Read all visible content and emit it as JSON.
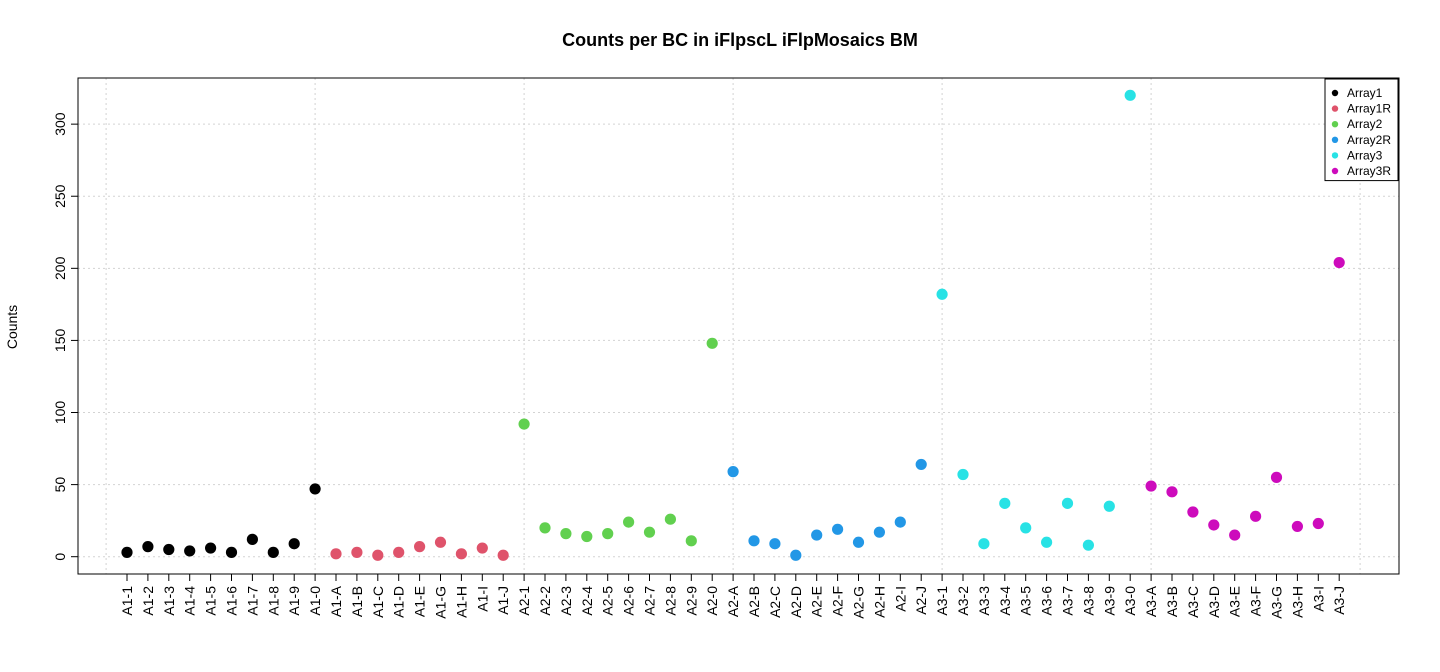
{
  "chart_data": {
    "type": "scatter",
    "title": "Counts per BC in iFlpscL iFlpMosaics BM",
    "xlabel": "",
    "ylabel": "Counts",
    "ylim": [
      -12,
      332
    ],
    "y_ticks": [
      0,
      50,
      100,
      150,
      200,
      250,
      300
    ],
    "grid": true,
    "legend_position": "top-right",
    "categories": [
      "A1-1",
      "A1-2",
      "A1-3",
      "A1-4",
      "A1-5",
      "A1-6",
      "A1-7",
      "A1-8",
      "A1-9",
      "A1-0",
      "A1-A",
      "A1-B",
      "A1-C",
      "A1-D",
      "A1-E",
      "A1-G",
      "A1-H",
      "A1-I",
      "A1-J",
      "A2-1",
      "A2-2",
      "A2-3",
      "A2-4",
      "A2-5",
      "A2-6",
      "A2-7",
      "A2-8",
      "A2-9",
      "A2-0",
      "A2-A",
      "A2-B",
      "A2-C",
      "A2-D",
      "A2-E",
      "A2-F",
      "A2-G",
      "A2-H",
      "A2-I",
      "A2-J",
      "A3-1",
      "A3-2",
      "A3-3",
      "A3-4",
      "A3-5",
      "A3-6",
      "A3-7",
      "A3-8",
      "A3-9",
      "A3-0",
      "A3-A",
      "A3-B",
      "A3-C",
      "A3-D",
      "A3-E",
      "A3-F",
      "A3-G",
      "A3-H",
      "A3-I",
      "A3-J"
    ],
    "series": [
      {
        "name": "Array1",
        "color": "#000000",
        "start": 0,
        "values": [
          3,
          7,
          5,
          4,
          6,
          3,
          12,
          3,
          9,
          47
        ]
      },
      {
        "name": "Array1R",
        "color": "#DF536B",
        "start": 10,
        "values": [
          2,
          3,
          1,
          3,
          7,
          10,
          2,
          6,
          1
        ]
      },
      {
        "name": "Array2",
        "color": "#61D04F",
        "start": 19,
        "values": [
          92,
          20,
          16,
          14,
          16,
          24,
          17,
          26,
          11,
          148
        ]
      },
      {
        "name": "Array2R",
        "color": "#2297E6",
        "start": 29,
        "values": [
          59,
          11,
          9,
          1,
          15,
          19,
          10,
          17,
          24,
          64
        ]
      },
      {
        "name": "Array3",
        "color": "#28E2E5",
        "start": 39,
        "values": [
          182,
          57,
          9,
          37,
          20,
          10,
          37,
          8,
          35,
          320
        ]
      },
      {
        "name": "Array3R",
        "color": "#CD0BBC",
        "start": 49,
        "values": [
          49,
          45,
          31,
          22,
          15,
          28,
          55,
          21,
          23,
          204
        ]
      }
    ]
  }
}
